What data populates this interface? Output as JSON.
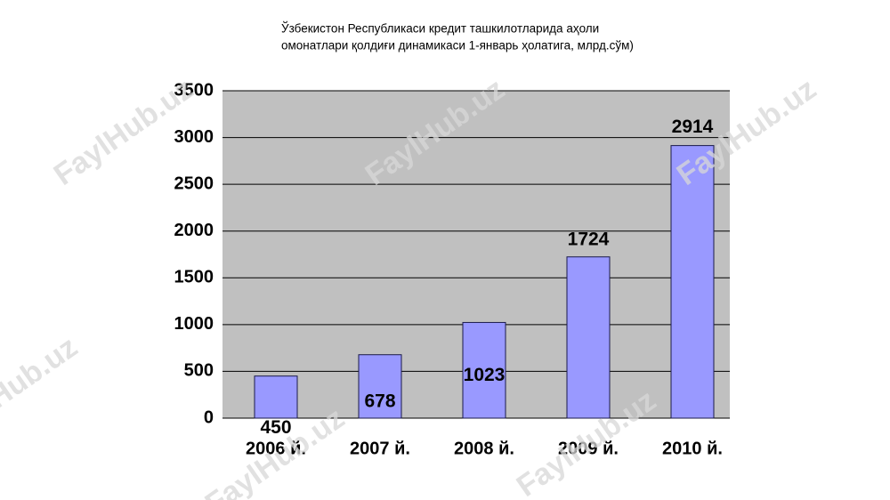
{
  "chart_data": {
    "type": "bar",
    "title": [
      "Ўзбекистон Республикаси  кредит ташкилотларида аҳоли",
      "омонатлари қолдиғи динамикаси 1-январь ҳолатига, млрд.сўм)"
    ],
    "categories": [
      "2006 й.",
      "2007 й.",
      "2008 й.",
      "2009 й.",
      "2010 й."
    ],
    "values": [
      450,
      678,
      1023,
      1724,
      2914
    ],
    "color": "#9999ff",
    "ylim": [
      0,
      3500
    ],
    "yticks": [
      0,
      500,
      1000,
      1500,
      2000,
      2500,
      3000,
      3500
    ],
    "grid": true,
    "watermark": "FaylHub.uz"
  }
}
